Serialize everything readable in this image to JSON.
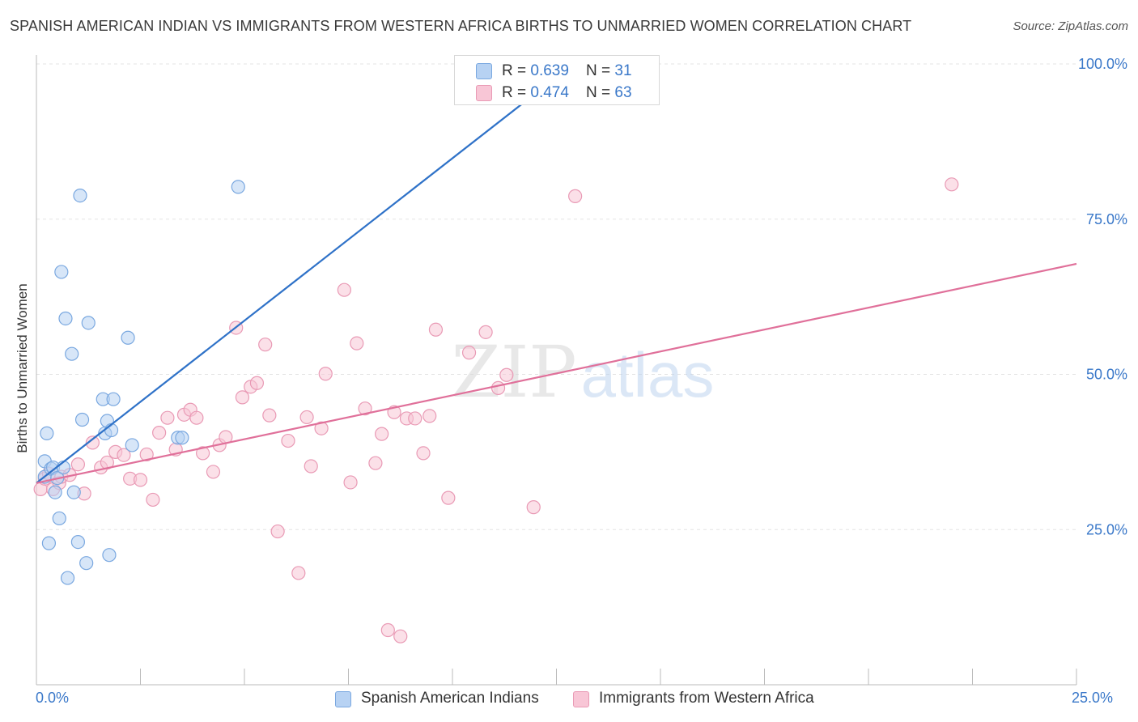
{
  "header": {
    "title": "SPANISH AMERICAN INDIAN VS IMMIGRANTS FROM WESTERN AFRICA BIRTHS TO UNMARRIED WOMEN CORRELATION CHART",
    "source": "Source: ZipAtlas.com"
  },
  "watermark": {
    "zip": "ZIP",
    "atlas": "atlas"
  },
  "legend_box": {
    "series1": {
      "r_label": "R = ",
      "r_value": "0.639",
      "n_label": "N = ",
      "n_value": "31"
    },
    "series2": {
      "r_label": "R = ",
      "r_value": "0.474",
      "n_label": "N = ",
      "n_value": "63"
    }
  },
  "colors": {
    "blue_fill": "#b7d2f3",
    "blue_stroke": "#7aa8e0",
    "blue_line": "#2f72c8",
    "pink_fill": "#f8c6d6",
    "pink_stroke": "#e99ab5",
    "pink_line": "#e0709a",
    "tick_text": "#3a78c9",
    "grid": "#e3e3e3"
  },
  "chart_data": {
    "type": "scatter",
    "title": "SPANISH AMERICAN INDIAN VS IMMIGRANTS FROM WESTERN AFRICA BIRTHS TO UNMARRIED WOMEN CORRELATION CHART",
    "xlabel": "",
    "ylabel": "Births to Unmarried Women",
    "xlim": [
      0,
      25
    ],
    "ylim": [
      0,
      100
    ],
    "x_tick_labels": [
      "0.0%",
      "25.0%"
    ],
    "y_ticks": [
      25,
      50,
      75,
      100
    ],
    "y_tick_labels": [
      "25.0%",
      "50.0%",
      "75.0%",
      "100.0%"
    ],
    "grid": true,
    "legend_position": "bottom-center",
    "series": [
      {
        "name": "Spanish American Indians",
        "color": "#7aa8e0",
        "r": 0.639,
        "n": 31,
        "trend": {
          "x": [
            0,
            13
          ],
          "y": [
            32.5,
            100.5
          ]
        },
        "points": [
          {
            "x": 0.2,
            "y": 33.5
          },
          {
            "x": 0.2,
            "y": 36
          },
          {
            "x": 0.25,
            "y": 40.5
          },
          {
            "x": 0.3,
            "y": 22.8
          },
          {
            "x": 0.35,
            "y": 34.8
          },
          {
            "x": 0.4,
            "y": 35
          },
          {
            "x": 0.45,
            "y": 31
          },
          {
            "x": 0.5,
            "y": 33.3
          },
          {
            "x": 0.55,
            "y": 26.8
          },
          {
            "x": 0.6,
            "y": 66.5
          },
          {
            "x": 0.65,
            "y": 35
          },
          {
            "x": 0.7,
            "y": 59
          },
          {
            "x": 0.75,
            "y": 17.2
          },
          {
            "x": 0.85,
            "y": 53.3
          },
          {
            "x": 0.9,
            "y": 31
          },
          {
            "x": 1.0,
            "y": 23
          },
          {
            "x": 1.05,
            "y": 78.8
          },
          {
            "x": 1.1,
            "y": 42.7
          },
          {
            "x": 1.2,
            "y": 19.6
          },
          {
            "x": 1.25,
            "y": 58.3
          },
          {
            "x": 1.6,
            "y": 46
          },
          {
            "x": 1.65,
            "y": 40.5
          },
          {
            "x": 1.7,
            "y": 42.5
          },
          {
            "x": 1.8,
            "y": 41
          },
          {
            "x": 1.85,
            "y": 46
          },
          {
            "x": 1.75,
            "y": 20.9
          },
          {
            "x": 2.2,
            "y": 55.9
          },
          {
            "x": 2.3,
            "y": 38.6
          },
          {
            "x": 3.4,
            "y": 39.8
          },
          {
            "x": 3.5,
            "y": 39.8
          },
          {
            "x": 4.85,
            "y": 80.2
          }
        ]
      },
      {
        "name": "Immigrants from Western Africa",
        "color": "#e99ab5",
        "r": 0.474,
        "n": 63,
        "trend": {
          "x": [
            0,
            25
          ],
          "y": [
            32.5,
            67.8
          ]
        },
        "points": [
          {
            "x": 0.1,
            "y": 31.5
          },
          {
            "x": 0.2,
            "y": 33.2
          },
          {
            "x": 0.3,
            "y": 34
          },
          {
            "x": 0.4,
            "y": 31.5
          },
          {
            "x": 0.55,
            "y": 32.5
          },
          {
            "x": 0.6,
            "y": 33.5
          },
          {
            "x": 0.8,
            "y": 33.8
          },
          {
            "x": 1.0,
            "y": 35.5
          },
          {
            "x": 1.15,
            "y": 30.8
          },
          {
            "x": 1.35,
            "y": 39
          },
          {
            "x": 1.55,
            "y": 35
          },
          {
            "x": 1.7,
            "y": 35.8
          },
          {
            "x": 1.9,
            "y": 37.5
          },
          {
            "x": 2.1,
            "y": 37
          },
          {
            "x": 2.25,
            "y": 33.2
          },
          {
            "x": 2.5,
            "y": 33
          },
          {
            "x": 2.65,
            "y": 37.1
          },
          {
            "x": 2.8,
            "y": 29.8
          },
          {
            "x": 2.95,
            "y": 40.6
          },
          {
            "x": 3.15,
            "y": 43
          },
          {
            "x": 3.35,
            "y": 37.9
          },
          {
            "x": 3.55,
            "y": 43.5
          },
          {
            "x": 3.7,
            "y": 44.3
          },
          {
            "x": 3.85,
            "y": 43
          },
          {
            "x": 4.0,
            "y": 37.3
          },
          {
            "x": 4.25,
            "y": 34.3
          },
          {
            "x": 4.4,
            "y": 38.6
          },
          {
            "x": 4.55,
            "y": 39.9
          },
          {
            "x": 4.8,
            "y": 57.5
          },
          {
            "x": 4.95,
            "y": 46.3
          },
          {
            "x": 5.15,
            "y": 48
          },
          {
            "x": 5.3,
            "y": 48.6
          },
          {
            "x": 5.5,
            "y": 54.8
          },
          {
            "x": 5.6,
            "y": 43.4
          },
          {
            "x": 5.8,
            "y": 24.7
          },
          {
            "x": 6.05,
            "y": 39.3
          },
          {
            "x": 6.3,
            "y": 18
          },
          {
            "x": 6.5,
            "y": 43.1
          },
          {
            "x": 6.6,
            "y": 35.2
          },
          {
            "x": 6.85,
            "y": 41.3
          },
          {
            "x": 6.95,
            "y": 50.1
          },
          {
            "x": 7.4,
            "y": 63.6
          },
          {
            "x": 7.55,
            "y": 32.6
          },
          {
            "x": 7.7,
            "y": 55
          },
          {
            "x": 7.9,
            "y": 44.5
          },
          {
            "x": 8.15,
            "y": 35.7
          },
          {
            "x": 8.3,
            "y": 40.4
          },
          {
            "x": 8.45,
            "y": 8.8
          },
          {
            "x": 8.6,
            "y": 43.9
          },
          {
            "x": 8.75,
            "y": 7.8
          },
          {
            "x": 8.9,
            "y": 42.9
          },
          {
            "x": 9.1,
            "y": 42.9
          },
          {
            "x": 9.3,
            "y": 37.3
          },
          {
            "x": 9.45,
            "y": 43.3
          },
          {
            "x": 9.6,
            "y": 57.2
          },
          {
            "x": 9.9,
            "y": 30.1
          },
          {
            "x": 10.4,
            "y": 53.5
          },
          {
            "x": 10.8,
            "y": 56.8
          },
          {
            "x": 11.1,
            "y": 47.8
          },
          {
            "x": 11.3,
            "y": 49.9
          },
          {
            "x": 11.95,
            "y": 28.6
          },
          {
            "x": 12.95,
            "y": 78.7
          },
          {
            "x": 22.0,
            "y": 80.6
          }
        ]
      }
    ]
  }
}
